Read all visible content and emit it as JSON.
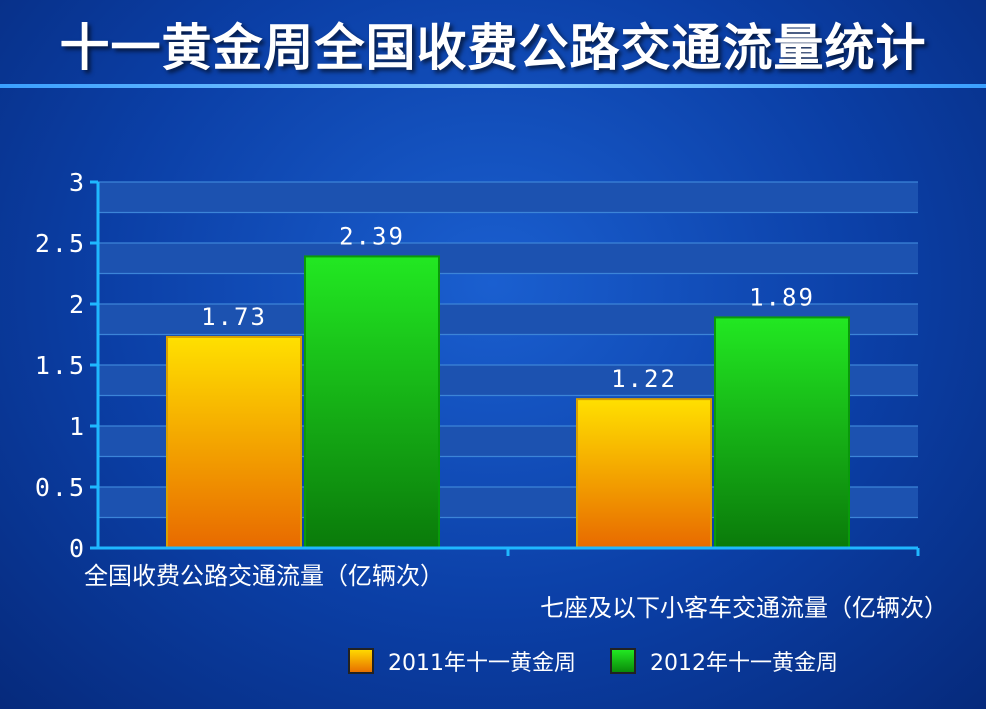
{
  "title": "十一黄金周全国收费公路交通流量统计",
  "chart_data": {
    "type": "bar",
    "categories": [
      "全国收费公路交通流量（亿辆次）",
      "七座及以下小客车交通流量（亿辆次）"
    ],
    "series": [
      {
        "name": "2011年十一黄金周",
        "values": [
          1.73,
          1.22
        ],
        "color": "#f0a020",
        "value_labels": [
          "1.73",
          "1.22"
        ]
      },
      {
        "name": "2012年十一黄金周",
        "values": [
          2.39,
          1.89
        ],
        "color": "#18c018",
        "value_labels": [
          "2.39",
          "1.89"
        ]
      }
    ],
    "ylim": [
      0,
      3
    ],
    "yticks": [
      0,
      0.5,
      1,
      1.5,
      2,
      2.5,
      3
    ],
    "ytick_labels": [
      "0",
      "0.5",
      "1",
      "1.5",
      "2",
      "2.5",
      "3"
    ],
    "grid": true,
    "legend": "bottom"
  },
  "colors": {
    "axis": "#1fb8ff",
    "gridline": "#3c84d8",
    "band": "#1c52b0",
    "text": "#ffffff"
  }
}
